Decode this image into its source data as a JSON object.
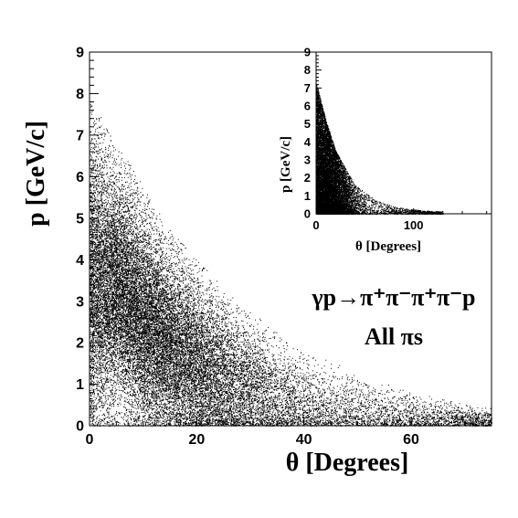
{
  "chart_data": [
    {
      "id": "main",
      "type": "scatter",
      "title": "",
      "xlabel": "θ [Degrees]",
      "ylabel": "p [GeV/c]",
      "xlim": [
        0,
        75
      ],
      "ylim": [
        0,
        9
      ],
      "xticks": [
        0,
        20,
        40,
        60
      ],
      "yticks": [
        0,
        1,
        2,
        3,
        4,
        5,
        6,
        7,
        8,
        9
      ],
      "xtick_labels": [
        "0",
        "20",
        "40",
        "60"
      ],
      "ytick_labels": [
        "0",
        "1",
        "2",
        "3",
        "4",
        "5",
        "6",
        "7",
        "8",
        "9"
      ],
      "grid": false,
      "legend": "none",
      "annotations": {
        "reaction": "γp→π⁺π⁻π⁺π⁻p",
        "selection": "All πs"
      },
      "series": [
        {
          "values_description": "dense scatter of momentum vs. polar angle",
          "density_envelope": {
            "theta": [
              0,
              5,
              10,
              15,
              20,
              30,
              40,
              50,
              60,
              70,
              75
            ],
            "p_upper": [
              7.5,
              6.5,
              5.5,
              4.5,
              3.8,
              2.6,
              1.8,
              1.2,
              0.8,
              0.5,
              0.4
            ],
            "p_peak": [
              3.5,
              3.4,
              2.6,
              2.0,
              1.5,
              0.9,
              0.5,
              0.3,
              0.2,
              0.15,
              0.1
            ]
          }
        }
      ]
    },
    {
      "id": "inset",
      "type": "scatter",
      "title": "",
      "xlabel": "θ [Degrees]",
      "ylabel": "p [GeV/c]",
      "xlim": [
        0,
        180
      ],
      "ylim": [
        0,
        9
      ],
      "xticks": [
        0,
        100
      ],
      "yticks": [
        0,
        1,
        2,
        3,
        4,
        5,
        6,
        7,
        8,
        9
      ],
      "xtick_labels": [
        "0",
        "100"
      ],
      "ytick_labels": [
        "0",
        "1",
        "2",
        "3",
        "4",
        "5",
        "6",
        "7",
        "8",
        "9"
      ],
      "grid": false,
      "legend": "none",
      "series": [
        {
          "values_description": "full angular range scatter, dense near small θ",
          "density_envelope": {
            "theta": [
              0,
              10,
              20,
              40,
              60,
              80,
              100,
              120
            ],
            "p_upper": [
              7.3,
              5.2,
              3.5,
              1.6,
              0.8,
              0.4,
              0.25,
              0.15
            ]
          }
        }
      ]
    }
  ]
}
